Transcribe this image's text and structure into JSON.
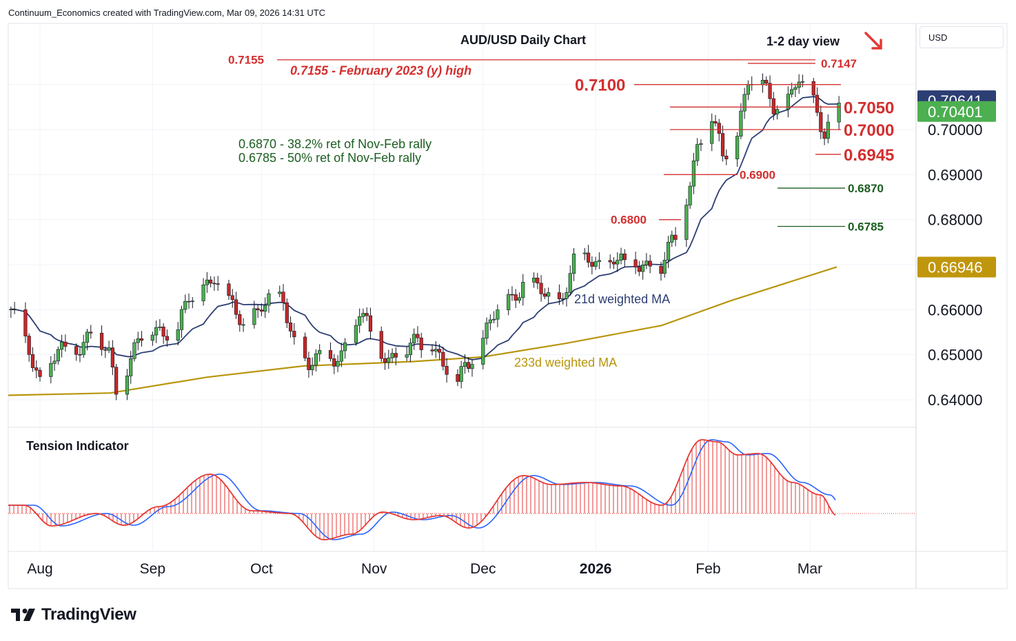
{
  "header": {
    "text": "Continuum_Economics created with TradingView.com, Mar 09, 2026 14:31 UTC"
  },
  "currency": "USD",
  "brand": "TradingView",
  "chart_data": {
    "type": "candlestick",
    "title": "AUD/USD Daily Chart",
    "view": "1-2 day view",
    "ylim": [
      0.633,
      0.7215
    ],
    "y_ticks": [
      "0.64000",
      "0.65000",
      "0.66000",
      "0.68000",
      "0.69000",
      "0.70000"
    ],
    "x_ticks": [
      {
        "label": "Aug",
        "date": "2025-08-01"
      },
      {
        "label": "Sep",
        "date": "2025-09-01"
      },
      {
        "label": "Oct",
        "date": "2025-10-01"
      },
      {
        "label": "Nov",
        "date": "2025-11-01"
      },
      {
        "label": "Dec",
        "date": "2025-12-01"
      },
      {
        "label": "2026",
        "date": "2026-01-01",
        "bold": true
      },
      {
        "label": "Feb",
        "date": "2026-02-01"
      },
      {
        "label": "Mar",
        "date": "2026-03-01"
      }
    ],
    "price_tags": [
      {
        "value": "0.70641",
        "bg": "#2c3e73",
        "color": "#ffffff"
      },
      {
        "value": "0.70401",
        "bg": "#4caf50",
        "color": "#ffffff"
      },
      {
        "value": "0.66946",
        "bg": "#c0960c",
        "color": "#ffffff"
      }
    ],
    "levels": [
      {
        "label": "0.7155",
        "price": 0.7155,
        "text": "0.7155 - February 2023 (y) high"
      },
      {
        "label": "0.7147",
        "price": 0.7147
      },
      {
        "label": "0.7100",
        "price": 0.71
      },
      {
        "label": "0.7050",
        "price": 0.705
      },
      {
        "label": "0.7000",
        "price": 0.7
      },
      {
        "label": "0.6945",
        "price": 0.6945
      },
      {
        "label": "0.6900",
        "price": 0.69
      },
      {
        "label": "0.6870",
        "price": 0.687
      },
      {
        "label": "0.6800",
        "price": 0.68
      },
      {
        "label": "0.6785",
        "price": 0.6785
      }
    ],
    "annotations": [
      "0.6870 - 38.2% ret of Nov-Feb rally",
      "0.6785 - 50% ret of Nov-Feb rally"
    ],
    "ma_labels": {
      "ma21": "21d weighted MA",
      "ma233": "233d weighted MA"
    },
    "indicator_title": "Tension Indicator",
    "colors": {
      "up": "#4caf50",
      "down": "#c62828",
      "ma21": "#2c3e73",
      "ma233": "#b8950b",
      "level": "#d32f2f",
      "retrace": "#1b5e20"
    },
    "ohlc_anchors": [
      [
        "2025-07-24",
        0.659
      ],
      [
        "2025-07-29",
        0.652
      ],
      [
        "2025-08-01",
        0.644
      ],
      [
        "2025-08-06",
        0.6505
      ],
      [
        "2025-08-11",
        0.652
      ],
      [
        "2025-08-15",
        0.654
      ],
      [
        "2025-08-20",
        0.65
      ],
      [
        "2025-08-22",
        0.643
      ],
      [
        "2025-08-26",
        0.6495
      ],
      [
        "2025-08-29",
        0.6535
      ],
      [
        "2025-09-03",
        0.6555
      ],
      [
        "2025-09-08",
        0.656
      ],
      [
        "2025-09-11",
        0.662
      ],
      [
        "2025-09-16",
        0.666
      ],
      [
        "2025-09-18",
        0.668
      ],
      [
        "2025-09-22",
        0.661
      ],
      [
        "2025-09-26",
        0.657
      ],
      [
        "2025-10-01",
        0.6615
      ],
      [
        "2025-10-07",
        0.6615
      ],
      [
        "2025-10-10",
        0.6535
      ],
      [
        "2025-10-14",
        0.648
      ],
      [
        "2025-10-20",
        0.649
      ],
      [
        "2025-10-23",
        0.6505
      ],
      [
        "2025-10-28",
        0.659
      ],
      [
        "2025-10-31",
        0.655
      ],
      [
        "2025-11-05",
        0.649
      ],
      [
        "2025-11-10",
        0.6505
      ],
      [
        "2025-11-13",
        0.6535
      ],
      [
        "2025-11-17",
        0.653
      ],
      [
        "2025-11-20",
        0.647
      ],
      [
        "2025-11-24",
        0.6435
      ],
      [
        "2025-11-26",
        0.648
      ],
      [
        "2025-12-01",
        0.6535
      ],
      [
        "2025-12-05",
        0.66
      ],
      [
        "2025-12-09",
        0.663
      ],
      [
        "2025-12-12",
        0.666
      ],
      [
        "2025-12-17",
        0.664
      ],
      [
        "2025-12-22",
        0.662
      ],
      [
        "2025-12-26",
        0.67
      ],
      [
        "2025-12-30",
        0.671
      ],
      [
        "2026-01-02",
        0.6705
      ],
      [
        "2026-01-06",
        0.672
      ],
      [
        "2026-01-09",
        0.669
      ],
      [
        "2026-01-14",
        0.6705
      ],
      [
        "2026-01-19",
        0.6695
      ],
      [
        "2026-01-23",
        0.676
      ],
      [
        "2026-01-27",
        0.6885
      ],
      [
        "2026-01-29",
        0.6965
      ],
      [
        "2026-02-02",
        0.702
      ],
      [
        "2026-02-05",
        0.6945
      ],
      [
        "2026-02-09",
        0.7
      ],
      [
        "2026-02-12",
        0.7105
      ],
      [
        "2026-02-16",
        0.7095
      ],
      [
        "2026-02-19",
        0.706
      ],
      [
        "2026-02-24",
        0.7075
      ],
      [
        "2026-02-26",
        0.711
      ],
      [
        "2026-03-02",
        0.706
      ],
      [
        "2026-03-05",
        0.7
      ],
      [
        "2026-03-09",
        0.704
      ]
    ]
  }
}
